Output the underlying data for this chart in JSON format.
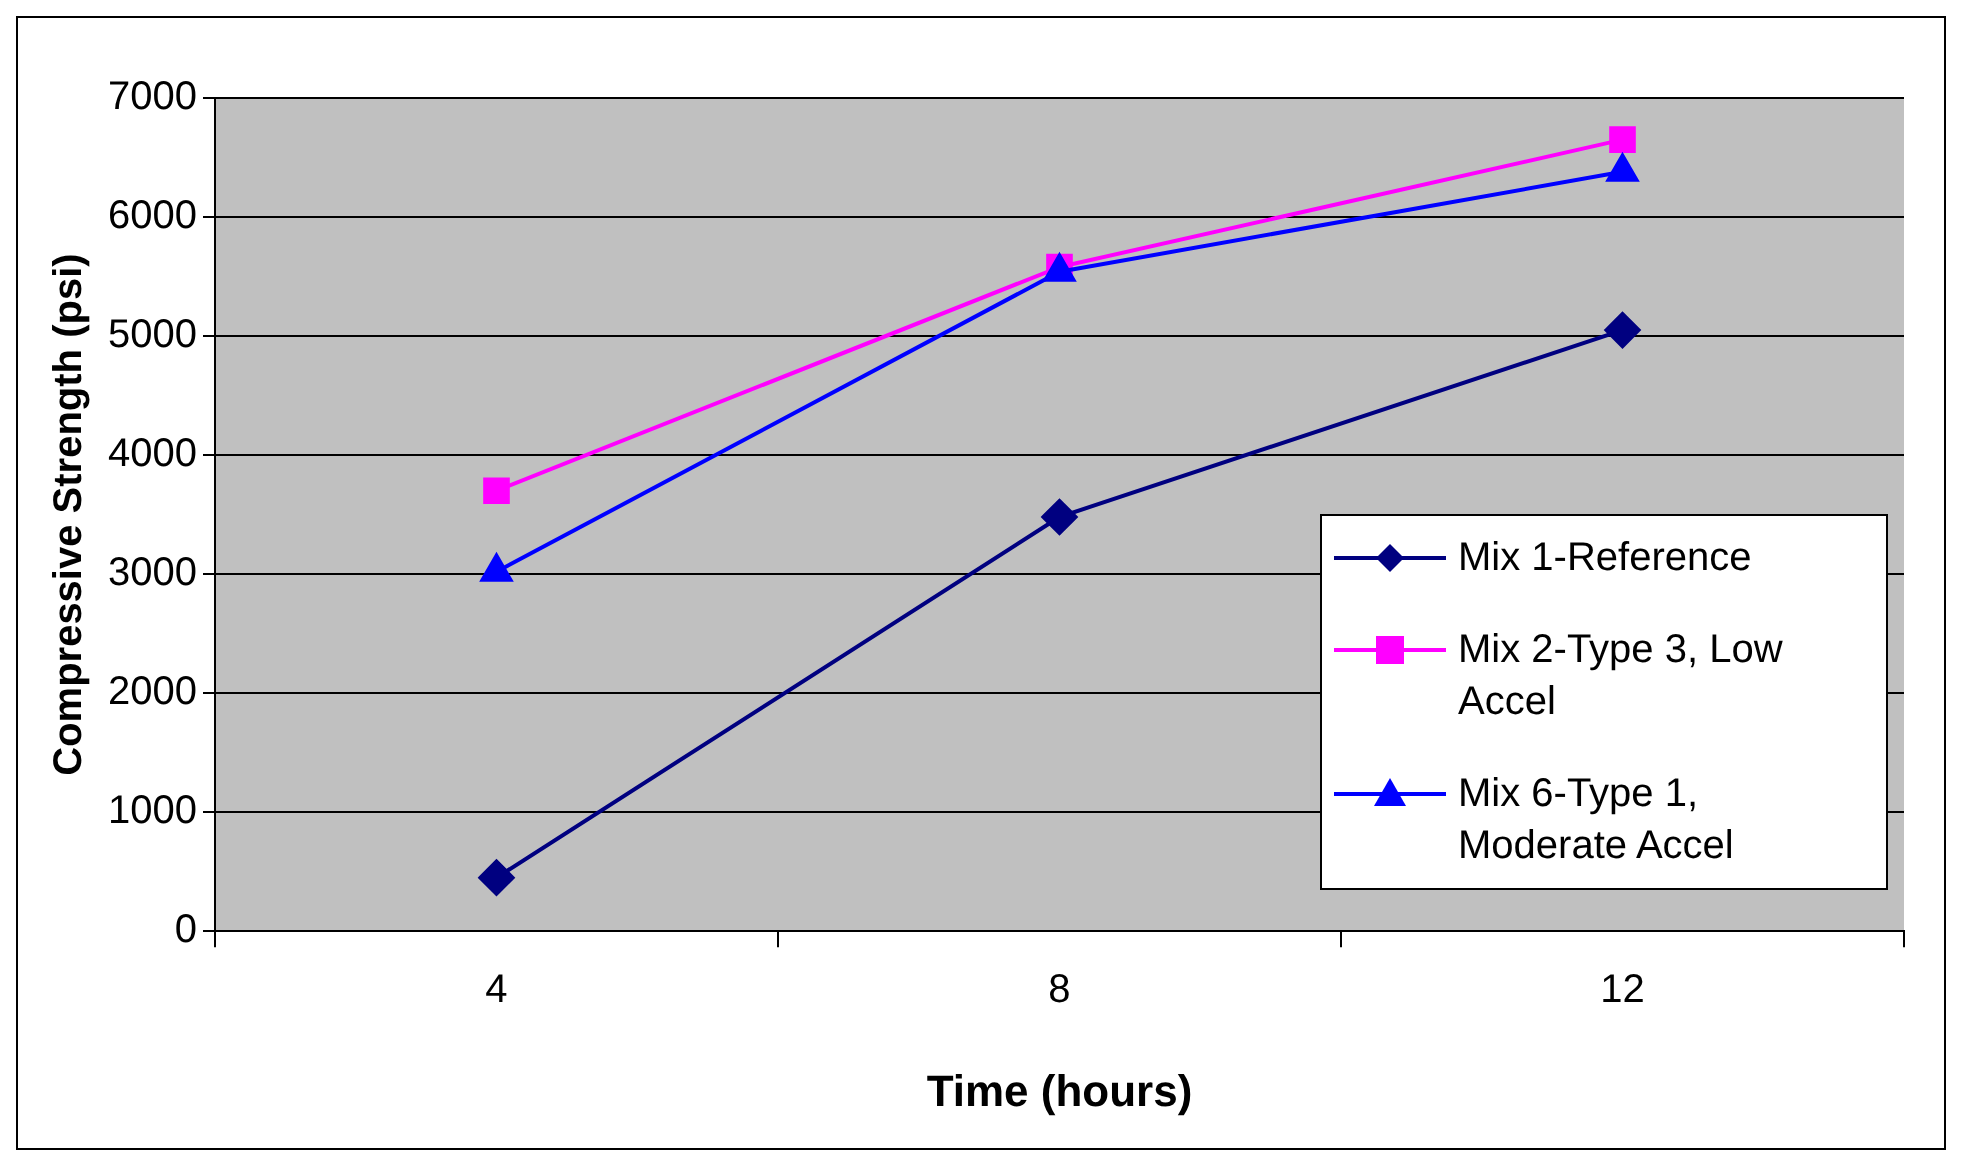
{
  "chart_data": {
    "type": "line",
    "xlabel": "Time (hours)",
    "ylabel": "Compressive Strength (psi)",
    "categories": [
      "4",
      "8",
      "12"
    ],
    "series": [
      {
        "name": "Mix 1-Reference",
        "color": "#000080",
        "marker": "diamond",
        "values": [
          450,
          3480,
          5050
        ]
      },
      {
        "name": "Mix 2-Type 3, Low Accel",
        "color": "#ff00ff",
        "marker": "square",
        "values": [
          3700,
          5580,
          6650
        ]
      },
      {
        "name": "Mix 6-Type 1, Moderate Accel",
        "color": "#0000ff",
        "marker": "triangle",
        "values": [
          3020,
          5540,
          6380
        ]
      }
    ],
    "ylim": [
      0,
      7000
    ],
    "yticks": [
      0,
      1000,
      2000,
      3000,
      4000,
      5000,
      6000,
      7000
    ],
    "grid": "y",
    "legend": "bottom right"
  }
}
